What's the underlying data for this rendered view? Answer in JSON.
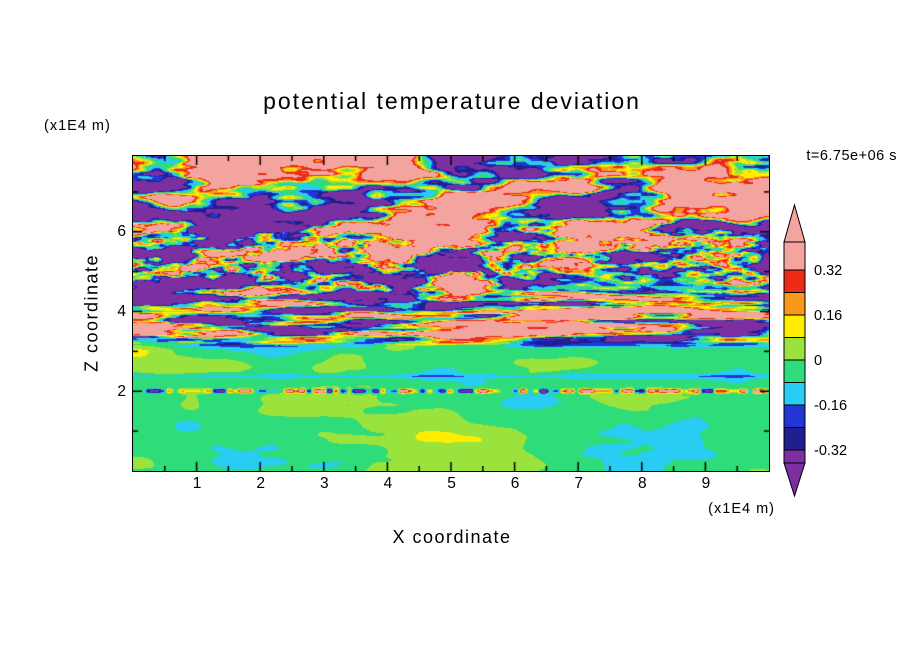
{
  "title": "potential temperature deviation",
  "time_label": "t=6.75e+06 s",
  "x_axis": {
    "label": "X coordinate",
    "unit": "(x1E4 m)"
  },
  "z_axis": {
    "label": "Z coordinate",
    "unit": "(x1E4 m)"
  },
  "colorbar": {
    "colors_top_to_bottom": [
      "#f3a49e",
      "#ee2a18",
      "#f8981d",
      "#ffee00",
      "#9ae23c",
      "#2edc7a",
      "#29ccf2",
      "#2236d6",
      "#1f1f8f",
      "#7b2fa0"
    ],
    "boundary_labels": [
      {
        "after_segment": 1,
        "text": "0.32"
      },
      {
        "after_segment": 3,
        "text": "0.16"
      },
      {
        "after_segment": 5,
        "text": "0"
      },
      {
        "after_segment": 7,
        "text": "-0.16"
      },
      {
        "after_segment": 9,
        "text": "-0.32"
      }
    ]
  },
  "chart_data": {
    "type": "heatmap",
    "title": "potential temperature deviation",
    "xlabel": "X coordinate",
    "ylabel": "Z coordinate",
    "axis_unit": "(x1E4 m)",
    "time_label": "t=6.75e+06 s",
    "xlim": [
      0,
      10
    ],
    "ylim": [
      0,
      7.9
    ],
    "x_ticks": [
      1,
      2,
      3,
      4,
      5,
      6,
      7,
      8,
      9
    ],
    "x_minor_step": 0.5,
    "y_ticks": [
      2,
      4,
      6
    ],
    "y_minor_step": 1,
    "levels": [
      0.32,
      0.24,
      0.16,
      0.08,
      0,
      -0.08,
      -0.16,
      -0.24,
      -0.32
    ],
    "legend_position": "right",
    "grid": false,
    "field_regions": [
      {
        "z_range": [
          4.4,
          7.9
        ],
        "description": "convective mixed layer: interleaved pink (>0.32) and purple (<-0.32) horizontally elongated eddies with thin red/orange/yellow/cyan/blue rims"
      },
      {
        "z_range": [
          3.2,
          4.4
        ],
        "description": "entrainment zone: thin alternating red/orange/yellow positive streaks and navy/purple negative streaks; bright yellow lines near z=3.4-3.7"
      },
      {
        "z_range": [
          0,
          3.2
        ],
        "description": "lower stable layer near zero deviation: green background with yellow-green patches, occasional cyan, speckled perturbation line at z=2"
      }
    ]
  }
}
